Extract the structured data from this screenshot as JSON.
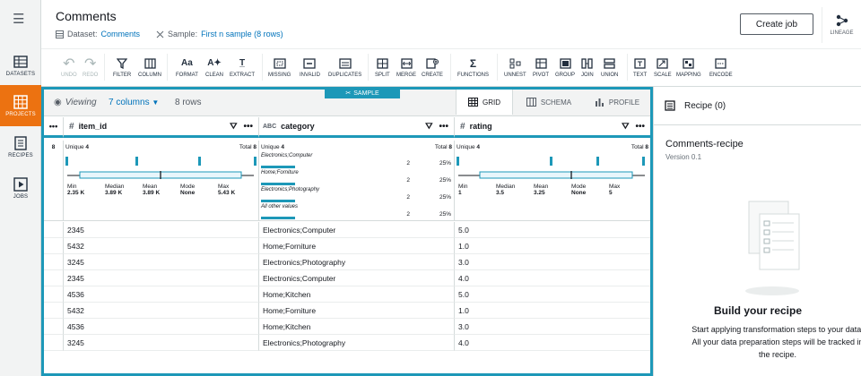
{
  "nav": {
    "items": [
      {
        "label": "DATASETS"
      },
      {
        "label": "PROJECTS"
      },
      {
        "label": "RECIPES"
      },
      {
        "label": "JOBS"
      }
    ]
  },
  "header": {
    "title": "Comments",
    "dataset_prefix": "Dataset:",
    "dataset_name": "Comments",
    "sample_prefix": "Sample:",
    "sample_name": "First n sample (8 rows)",
    "create_job": "Create job",
    "lineage": "LINEAGE"
  },
  "toolbar": {
    "undo": "UNDO",
    "redo": "REDO",
    "filter": "FILTER",
    "column": "COLUMN",
    "format": "FORMAT",
    "clean": "CLEAN",
    "extract": "EXTRACT",
    "missing": "MISSING",
    "invalid": "INVALID",
    "duplicates": "DUPLICATES",
    "split": "SPLIT",
    "merge": "MERGE",
    "create": "CREATE",
    "functions": "FUNCTIONS",
    "unnest": "UNNEST",
    "pivot": "PIVOT",
    "group": "GROUP",
    "join": "JOIN",
    "union": "UNION",
    "text": "TEXT",
    "scale": "SCALE",
    "mapping": "MAPPING",
    "encode": "ENCODE"
  },
  "view": {
    "sample_badge": "SAMPLE",
    "viewing": "Viewing",
    "columns": "7 columns",
    "rows": "8 rows",
    "tabs": {
      "grid": "GRID",
      "schema": "SCHEMA",
      "profile": "PROFILE"
    }
  },
  "grid": {
    "columns": [
      {
        "type": "#",
        "name": "item_id"
      },
      {
        "type": "ABC",
        "name": "category"
      },
      {
        "type": "#",
        "name": "rating"
      }
    ],
    "row_count": "8",
    "item_id": {
      "unique_label": "Unique",
      "unique": "4",
      "total_label": "Total",
      "total": "8",
      "stats": [
        {
          "label": "Min",
          "value": "2.35 K"
        },
        {
          "label": "Median",
          "value": "3.89 K"
        },
        {
          "label": "Mean",
          "value": "3.89 K"
        },
        {
          "label": "Mode",
          "value": "None"
        },
        {
          "label": "Max",
          "value": "5.43 K"
        }
      ]
    },
    "category": {
      "unique_label": "Unique",
      "unique": "4",
      "total_label": "Total",
      "total": "8",
      "values": [
        {
          "name": "Electronics;Computer",
          "count": "2",
          "pct": "25%"
        },
        {
          "name": "Home;Forniture",
          "count": "2",
          "pct": "25%"
        },
        {
          "name": "Electronics;Photography",
          "count": "2",
          "pct": "25%"
        },
        {
          "name": "All other values",
          "count": "2",
          "pct": "25%"
        }
      ]
    },
    "rating": {
      "unique_label": "Unique",
      "unique": "4",
      "total_label": "Total",
      "total": "8",
      "stats": [
        {
          "label": "Min",
          "value": "1"
        },
        {
          "label": "Median",
          "value": "3.5"
        },
        {
          "label": "Mean",
          "value": "3.25"
        },
        {
          "label": "Mode",
          "value": "None"
        },
        {
          "label": "Max",
          "value": "5"
        }
      ]
    },
    "rows": [
      {
        "item_id": "2345",
        "category": "Electronics;Computer",
        "rating": "5.0"
      },
      {
        "item_id": "5432",
        "category": "Home;Forniture",
        "rating": "1.0"
      },
      {
        "item_id": "3245",
        "category": "Electronics;Photography",
        "rating": "3.0"
      },
      {
        "item_id": "2345",
        "category": "Electronics;Computer",
        "rating": "4.0"
      },
      {
        "item_id": "4536",
        "category": "Home;Kitchen",
        "rating": "5.0"
      },
      {
        "item_id": "5432",
        "category": "Home;Forniture",
        "rating": "1.0"
      },
      {
        "item_id": "4536",
        "category": "Home;Kitchen",
        "rating": "3.0"
      },
      {
        "item_id": "3245",
        "category": "Electronics;Photography",
        "rating": "4.0"
      }
    ]
  },
  "recipe": {
    "header": "Recipe (0)",
    "name": "Comments-recipe",
    "version": "Version 0.1",
    "build_title": "Build your recipe",
    "build_desc": "Start applying transformation steps to your data. All your data preparation steps will be tracked in the recipe."
  },
  "colors": {
    "accent": "#1d98b8",
    "active_nav": "#ec7211",
    "link": "#0073bb"
  }
}
